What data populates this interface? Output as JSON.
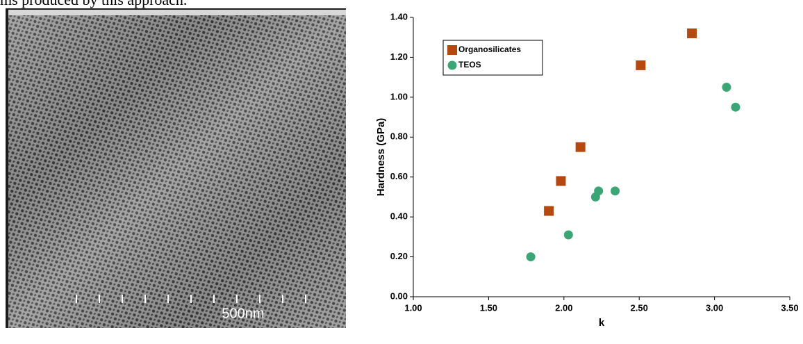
{
  "caption_fragment": "ms produced by this approach.",
  "image": {
    "scale_label": "500nm"
  },
  "chart_data": {
    "type": "scatter",
    "xlabel": "k",
    "ylabel": "Hardness (GPa)",
    "xlim": [
      1.0,
      3.5
    ],
    "xticks": [
      {
        "value": 1.0,
        "label": "1.00"
      },
      {
        "value": 1.5,
        "label": "1.50"
      },
      {
        "value": 2.0,
        "label": "2.00"
      },
      {
        "value": 2.5,
        "label": "2.50"
      },
      {
        "value": 3.0,
        "label": "3.00"
      },
      {
        "value": 3.5,
        "label": "3.50"
      }
    ],
    "ylim": [
      0.0,
      1.4
    ],
    "yticks": [
      {
        "value": 0.0,
        "label": "0.00"
      },
      {
        "value": 0.2,
        "label": "0.20"
      },
      {
        "value": 0.4,
        "label": "0.40"
      },
      {
        "value": 0.6,
        "label": "0.60"
      },
      {
        "value": 0.8,
        "label": "0.80"
      },
      {
        "value": 1.0,
        "label": "1.00"
      },
      {
        "value": 1.2,
        "label": "1.20"
      },
      {
        "value": 1.4,
        "label": "1.40"
      }
    ],
    "grid": false,
    "legend": "upper left",
    "series": [
      {
        "name": "Organosilicates",
        "color": "#b5480f",
        "marker": "square",
        "x": [
          1.9,
          1.98,
          2.11,
          2.51,
          2.85
        ],
        "values": [
          0.43,
          0.58,
          0.75,
          1.16,
          1.32
        ]
      },
      {
        "name": "TEOS",
        "color": "#3aa676",
        "marker": "circle",
        "x": [
          1.78,
          2.03,
          2.21,
          2.23,
          2.34,
          3.08,
          3.14
        ],
        "values": [
          0.2,
          0.31,
          0.5,
          0.53,
          0.53,
          1.05,
          0.95
        ]
      }
    ]
  }
}
